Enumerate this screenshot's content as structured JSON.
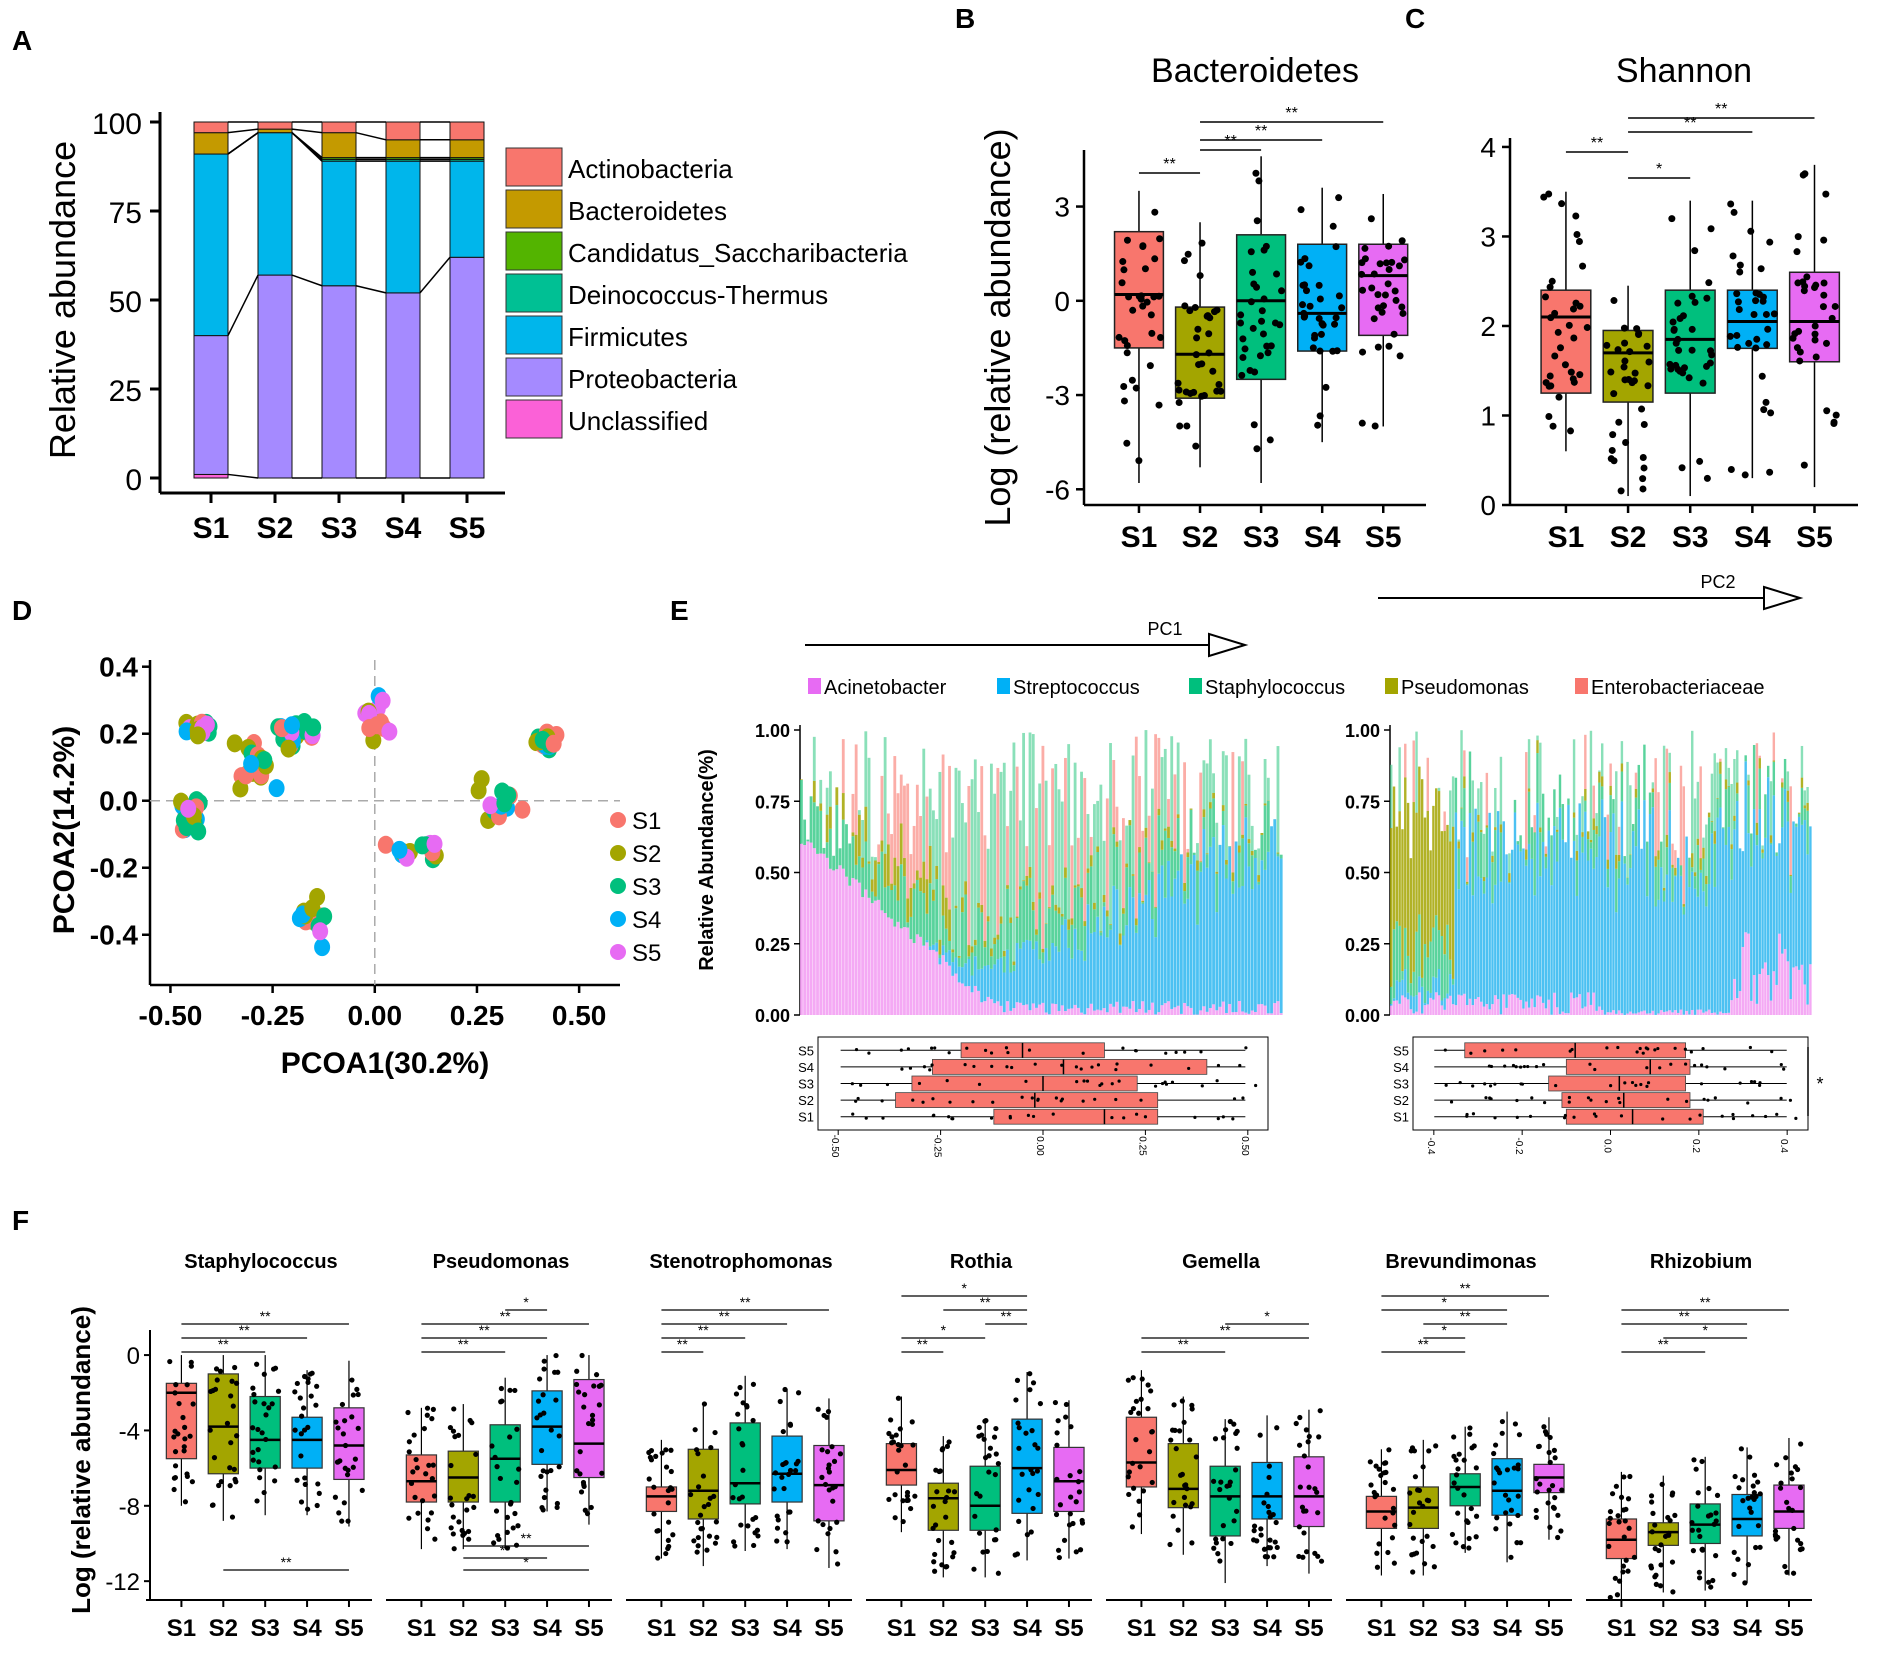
{
  "colors": {
    "S1": "#F8766D",
    "S2": "#A3A500",
    "S3": "#00BF7D",
    "S4": "#00B0F6",
    "S5": "#E76BF3",
    "black": "#000000"
  },
  "chart_data": [
    {
      "panel": "A",
      "type": "bar",
      "stacked": true,
      "title": "",
      "xlabel": "",
      "ylabel": "Relative abundance",
      "ylim": [
        0,
        100
      ],
      "yticks": [
        "0",
        "25",
        "50",
        "75",
        "100"
      ],
      "categories": [
        "S1",
        "S2",
        "S3",
        "S4",
        "S5"
      ],
      "legend": [
        "Actinobacteria",
        "Bacteroidetes",
        "Candidatus_Saccharibacteria",
        "Deinococcus-Thermus",
        "Firmicutes",
        "Proteobacteria",
        "Unclassified"
      ],
      "legend_colors": [
        "#F8766D",
        "#C49A00",
        "#53B400",
        "#00C094",
        "#00B6EB",
        "#A58AFF",
        "#FB61D7"
      ],
      "series": [
        {
          "name": "Unclassified",
          "color": "#FB61D7",
          "values": [
            1,
            0,
            0,
            0,
            0
          ]
        },
        {
          "name": "Proteobacteria",
          "color": "#A58AFF",
          "values": [
            39,
            57,
            54,
            52,
            62
          ]
        },
        {
          "name": "Firmicutes",
          "color": "#00B6EB",
          "values": [
            51,
            40,
            35,
            37,
            27
          ]
        },
        {
          "name": "Deinococcus-Thermus",
          "color": "#00C094",
          "values": [
            0,
            0,
            0.5,
            0.5,
            0.5
          ]
        },
        {
          "name": "Candidatus_Saccharibacteria",
          "color": "#53B400",
          "values": [
            0,
            0,
            0.5,
            0.5,
            0.5
          ]
        },
        {
          "name": "Bacteroidetes",
          "color": "#C49A00",
          "values": [
            6,
            1,
            7,
            5,
            5
          ]
        },
        {
          "name": "Actinobacteria",
          "color": "#F8766D",
          "values": [
            3,
            2,
            3,
            5,
            5
          ]
        }
      ]
    },
    {
      "panel": "B",
      "type": "box",
      "title": "Bacteroidetes",
      "xlabel": "",
      "ylabel": "Log (relative abundance)",
      "ylim": [
        -6.5,
        4.8
      ],
      "yticks": [
        -6,
        -3,
        0,
        3
      ],
      "categories": [
        "S1",
        "S2",
        "S3",
        "S4",
        "S5"
      ],
      "boxes": [
        {
          "group": "S1",
          "whisker_low": -5.8,
          "q1": -1.5,
          "median": 0.2,
          "q3": 2.2,
          "whisker_high": 3.5
        },
        {
          "group": "S2",
          "whisker_low": -5.3,
          "q1": -3.1,
          "median": -1.7,
          "q3": -0.2,
          "whisker_high": 2.5
        },
        {
          "group": "S3",
          "whisker_low": -5.8,
          "q1": -2.5,
          "median": 0.0,
          "q3": 2.1,
          "whisker_high": 4.6
        },
        {
          "group": "S4",
          "whisker_low": -4.5,
          "q1": -1.6,
          "median": -0.4,
          "q3": 1.8,
          "whisker_high": 3.6
        },
        {
          "group": "S5",
          "whisker_low": -4.0,
          "q1": -1.1,
          "median": 0.8,
          "q3": 1.8,
          "whisker_high": 3.4
        }
      ],
      "significance": [
        {
          "from": "S1",
          "to": "S2",
          "label": "**"
        },
        {
          "from": "S2",
          "to": "S3",
          "label": "**"
        },
        {
          "from": "S2",
          "to": "S4",
          "label": "**"
        },
        {
          "from": "S2",
          "to": "S5",
          "label": "**"
        }
      ]
    },
    {
      "panel": "C",
      "type": "box",
      "title": "Shannon",
      "xlabel": "",
      "ylabel": "",
      "ylim": [
        0,
        4.1
      ],
      "yticks": [
        0,
        1,
        2,
        3,
        4
      ],
      "categories": [
        "S1",
        "S2",
        "S3",
        "S4",
        "S5"
      ],
      "boxes": [
        {
          "group": "S1",
          "whisker_low": 0.6,
          "q1": 1.25,
          "median": 2.1,
          "q3": 2.4,
          "whisker_high": 3.5
        },
        {
          "group": "S2",
          "whisker_low": 0.1,
          "q1": 1.15,
          "median": 1.7,
          "q3": 1.95,
          "whisker_high": 2.45
        },
        {
          "group": "S3",
          "whisker_low": 0.1,
          "q1": 1.25,
          "median": 1.85,
          "q3": 2.4,
          "whisker_high": 3.4
        },
        {
          "group": "S4",
          "whisker_low": 0.3,
          "q1": 1.75,
          "median": 2.05,
          "q3": 2.4,
          "whisker_high": 3.4
        },
        {
          "group": "S5",
          "whisker_low": 0.2,
          "q1": 1.6,
          "median": 2.05,
          "q3": 2.6,
          "whisker_high": 3.8
        }
      ],
      "significance": [
        {
          "from": "S1",
          "to": "S2",
          "label": "**"
        },
        {
          "from": "S2",
          "to": "S3",
          "label": "*"
        },
        {
          "from": "S2",
          "to": "S4",
          "label": "**"
        },
        {
          "from": "S2",
          "to": "S5",
          "label": "**"
        }
      ]
    },
    {
      "panel": "D",
      "type": "scatter",
      "title": "",
      "xlabel": "PCOA1(30.2%)",
      "ylabel": "PCOA2(14.2%)",
      "xlim": [
        -0.55,
        0.6
      ],
      "ylim": [
        -0.55,
        0.42
      ],
      "xticks": [
        "-0.50",
        "-0.25",
        "0.00",
        "0.25",
        "0.50"
      ],
      "yticks": [
        "-0.4",
        "-0.2",
        "0.0",
        "0.2",
        "0.4"
      ],
      "legend": [
        "S1",
        "S2",
        "S3",
        "S4",
        "S5"
      ]
    },
    {
      "panel": "E",
      "type": "bar",
      "stacked": true,
      "title": "",
      "ylabel": "Relative Abundance(%)",
      "yticks": [
        "0.00",
        "0.25",
        "0.50",
        "0.75",
        "1.00"
      ],
      "arrows": [
        "PC1",
        "PC2"
      ],
      "legend": [
        "Acinetobacter",
        "Streptococcus",
        "Staphylococcus",
        "Pseudomonas",
        "Enterobacteriaceae"
      ],
      "legend_colors": [
        "#E76BF3",
        "#00B0F6",
        "#00BF7D",
        "#A3A500",
        "#F8766D"
      ],
      "box_groups": [
        "S5",
        "S4",
        "S3",
        "S2",
        "S1"
      ],
      "pc1_box_xticks": [
        "-0.50",
        "-0.25",
        "0.00",
        "0.25",
        "0.50"
      ],
      "pc2_box_xticks": [
        "-0.4",
        "-0.2",
        "0.0",
        "0.2",
        "0.4"
      ],
      "pc2_significance": "*",
      "pc1_boxes": [
        {
          "group": "S5",
          "q1": -0.2,
          "median": -0.05,
          "q3": 0.15
        },
        {
          "group": "S4",
          "q1": -0.27,
          "median": 0.05,
          "q3": 0.4
        },
        {
          "group": "S3",
          "q1": -0.32,
          "median": 0.0,
          "q3": 0.23
        },
        {
          "group": "S2",
          "q1": -0.36,
          "median": -0.02,
          "q3": 0.28
        },
        {
          "group": "S1",
          "q1": -0.12,
          "median": 0.15,
          "q3": 0.28
        }
      ],
      "pc2_boxes": [
        {
          "group": "S5",
          "q1": -0.33,
          "median": -0.08,
          "q3": 0.17
        },
        {
          "group": "S4",
          "q1": -0.1,
          "median": 0.09,
          "q3": 0.18
        },
        {
          "group": "S3",
          "q1": -0.14,
          "median": 0.02,
          "q3": 0.17
        },
        {
          "group": "S2",
          "q1": -0.11,
          "median": 0.03,
          "q3": 0.18
        },
        {
          "group": "S1",
          "q1": -0.1,
          "median": 0.05,
          "q3": 0.21
        }
      ]
    },
    {
      "panel": "F",
      "type": "box",
      "ylabel": "Log (relative abundance)",
      "ylim": [
        -13,
        0.8
      ],
      "yticks": [
        "0",
        "-4",
        "-8",
        "-12"
      ],
      "categories": [
        "S1",
        "S2",
        "S3",
        "S4",
        "S5"
      ],
      "subplots": [
        {
          "title": "Staphylococcus",
          "boxes": [
            [
              -5.5,
              -2,
              -1.5
            ],
            [
              -6.3,
              -3.8,
              -1
            ],
            [
              -6,
              -4.5,
              -2.2
            ],
            [
              -6,
              -4.5,
              -3.3
            ],
            [
              -6.6,
              -4.8,
              -2.8
            ]
          ],
          "significance": [
            {
              "from": "S1",
              "to": "S3",
              "label": "**"
            },
            {
              "from": "S1",
              "to": "S4",
              "label": "**"
            },
            {
              "from": "S1",
              "to": "S5",
              "label": "**"
            },
            {
              "from": "S2",
              "to": "S5",
              "label": "**",
              "position": "bottom"
            }
          ]
        },
        {
          "title": "Pseudomonas",
          "boxes": [
            [
              -7.8,
              -6.7,
              -5.3
            ],
            [
              -7.8,
              -6.5,
              -5.1
            ],
            [
              -7.8,
              -5.5,
              -3.7
            ],
            [
              -5.8,
              -3.8,
              -1.9
            ],
            [
              -6.5,
              -4.7,
              -1.3
            ]
          ],
          "significance": [
            {
              "from": "S1",
              "to": "S3",
              "label": "**"
            },
            {
              "from": "S1",
              "to": "S4",
              "label": "**"
            },
            {
              "from": "S1",
              "to": "S5",
              "label": "**"
            },
            {
              "from": "S3",
              "to": "S4",
              "label": "*"
            },
            {
              "from": "S2",
              "to": "S5",
              "label": "*",
              "position": "bottom"
            },
            {
              "from": "S2",
              "to": "S4",
              "label": "**",
              "position": "bottom"
            },
            {
              "from": "S2",
              "to": "S5",
              "label": "**",
              "position": "bottom"
            }
          ]
        },
        {
          "title": "Stenotrophomonas",
          "boxes": [
            [
              -8.3,
              -7.5,
              -7
            ],
            [
              -8.7,
              -7.2,
              -5
            ],
            [
              -7.9,
              -6.8,
              -3.6
            ],
            [
              -7.8,
              -6.3,
              -4.3
            ],
            [
              -8.8,
              -6.9,
              -4.8
            ]
          ],
          "significance": [
            {
              "from": "S1",
              "to": "S2",
              "label": "**"
            },
            {
              "from": "S1",
              "to": "S3",
              "label": "**"
            },
            {
              "from": "S1",
              "to": "S4",
              "label": "**"
            },
            {
              "from": "S1",
              "to": "S5",
              "label": "**"
            }
          ]
        },
        {
          "title": "Rothia",
          "boxes": [
            [
              -6.9,
              -6.1,
              -4.7
            ],
            [
              -9.3,
              -7.6,
              -6.8
            ],
            [
              -9.3,
              -8,
              -5.9
            ],
            [
              -8.4,
              -6,
              -3.4
            ],
            [
              -8.3,
              -6.7,
              -4.9
            ]
          ],
          "significance": [
            {
              "from": "S1",
              "to": "S2",
              "label": "**"
            },
            {
              "from": "S1",
              "to": "S3",
              "label": "*"
            },
            {
              "from": "S3",
              "to": "S4",
              "label": "**"
            },
            {
              "from": "S2",
              "to": "S4",
              "label": "**"
            },
            {
              "from": "S1",
              "to": "S4",
              "label": "*"
            }
          ]
        },
        {
          "title": "Gemella",
          "boxes": [
            [
              -7,
              -5.7,
              -3.3
            ],
            [
              -8.1,
              -7.1,
              -4.7
            ],
            [
              -9.6,
              -7.5,
              -5.9
            ],
            [
              -8.7,
              -7.5,
              -5.7
            ],
            [
              -9.1,
              -7.5,
              -5.4
            ]
          ],
          "significance": [
            {
              "from": "S1",
              "to": "S3",
              "label": "**"
            },
            {
              "from": "S1",
              "to": "S5",
              "label": "**"
            },
            {
              "from": "S3",
              "to": "S5",
              "label": "*"
            }
          ]
        },
        {
          "title": "Brevundimonas",
          "boxes": [
            [
              -9.2,
              -8.3,
              -7.5
            ],
            [
              -9.2,
              -8.1,
              -7
            ],
            [
              -8,
              -7,
              -6.3
            ],
            [
              -8.5,
              -7.2,
              -5.5
            ],
            [
              -7.3,
              -6.5,
              -5.8
            ]
          ],
          "significance": [
            {
              "from": "S1",
              "to": "S3",
              "label": "**"
            },
            {
              "from": "S2",
              "to": "S3",
              "label": "*"
            },
            {
              "from": "S2",
              "to": "S4",
              "label": "**"
            },
            {
              "from": "S1",
              "to": "S4",
              "label": "*"
            },
            {
              "from": "S1",
              "to": "S5",
              "label": "**"
            }
          ]
        },
        {
          "title": "Rhizobium",
          "boxes": [
            [
              -10.8,
              -9.8,
              -8.7
            ],
            [
              -10.1,
              -9.4,
              -8.9
            ],
            [
              -10,
              -9,
              -7.9
            ],
            [
              -9.6,
              -8.7,
              -7.4
            ],
            [
              -9.2,
              -8.3,
              -6.9
            ]
          ],
          "significance": [
            {
              "from": "S1",
              "to": "S3",
              "label": "**"
            },
            {
              "from": "S2",
              "to": "S4",
              "label": "*"
            },
            {
              "from": "S1",
              "to": "S4",
              "label": "**"
            },
            {
              "from": "S1",
              "to": "S5",
              "label": "**"
            }
          ]
        }
      ]
    }
  ],
  "panel_letters": {
    "A": "A",
    "B": "B",
    "C": "C",
    "D": "D",
    "E": "E",
    "F": "F"
  }
}
